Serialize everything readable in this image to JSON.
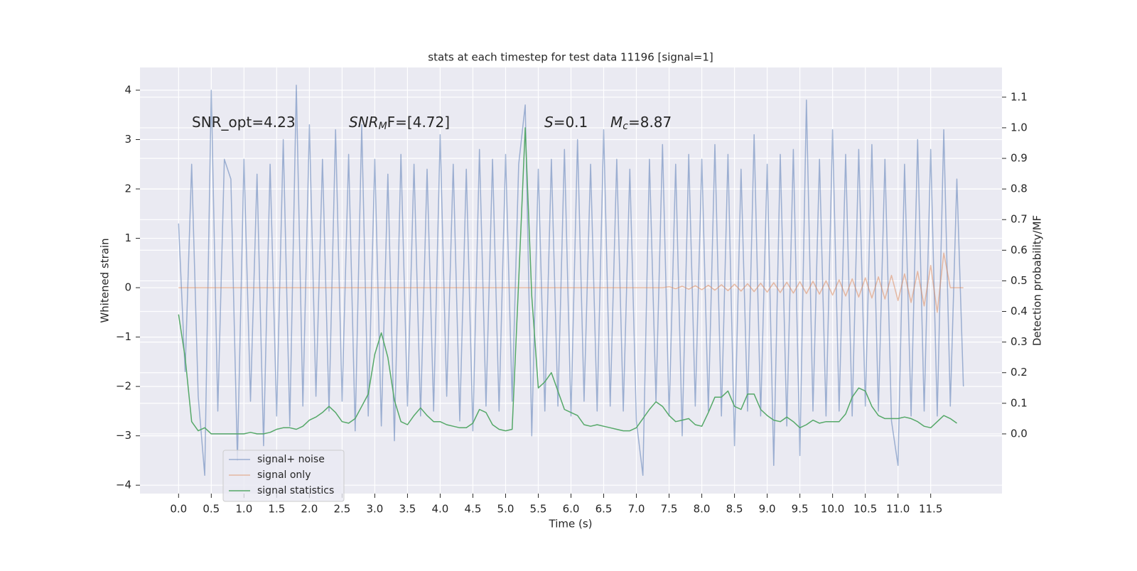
{
  "chart_data": {
    "type": "line",
    "title": "stats at each timestep for test data 11196 [signal=1]",
    "xlabel": "Time (s)",
    "ylabel": "Whitened strain",
    "y2label": "Detection probability/MF",
    "xlim": [
      -0.59,
      12.59
    ],
    "ylim": [
      -4.17,
      4.46
    ],
    "y2lim": [
      -0.195,
      1.197
    ],
    "xticks": [
      {
        "value": 0,
        "label": "0.0"
      },
      0.5,
      {
        "value": 1,
        "label": "1.0"
      },
      1.5,
      {
        "value": 2,
        "label": "2.0"
      },
      2.5,
      {
        "value": 3,
        "label": "3.0"
      },
      3.5,
      {
        "value": 4,
        "label": "4.0"
      },
      4.5,
      {
        "value": 5,
        "label": "5.0"
      },
      5.5,
      {
        "value": 6,
        "label": "6.0"
      },
      6.5,
      {
        "value": 7,
        "label": "7.0"
      },
      7.5,
      {
        "value": 8,
        "label": "8.0"
      },
      8.5,
      {
        "value": 9,
        "label": "9.0"
      },
      9.5,
      {
        "value": 10,
        "label": "10.0"
      },
      10.5,
      {
        "value": 11,
        "label": "11.0"
      },
      11.5
    ],
    "yticks": [
      {
        "value": -4,
        "label": "−4"
      },
      {
        "value": -3,
        "label": "−3"
      },
      {
        "value": -2,
        "label": "−2"
      },
      {
        "value": -1,
        "label": "−1"
      },
      0,
      1,
      2,
      3,
      4
    ],
    "y2ticks": [
      {
        "value": 0,
        "label": "0.0"
      },
      0.1,
      0.2,
      0.3,
      0.4,
      0.5,
      0.6,
      0.7,
      0.8,
      0.9,
      {
        "value": 1,
        "label": "1.0"
      },
      1.1
    ],
    "grid": true,
    "legend": "lower left",
    "annotations": [
      [
        {
          "text": "SNR_opt=4.23"
        }
      ],
      [
        {
          "text": "SNR",
          "italic": true
        },
        {
          "text": "M",
          "italic": true,
          "sub": true
        },
        {
          "text": "F=[4.72]",
          "italic": false
        }
      ],
      [
        {
          "text": "S",
          "italic": true
        },
        {
          "text": "=0.1"
        }
      ],
      [
        {
          "text": "M",
          "italic": true
        },
        {
          "text": "c",
          "italic": true,
          "sub": true
        },
        {
          "text": "=8.87"
        }
      ]
    ],
    "x": [
      0,
      0.1,
      0.2,
      0.3,
      0.4,
      0.5,
      0.6,
      0.7,
      0.8,
      0.9,
      1,
      1.1,
      1.2,
      1.3,
      1.4,
      1.5,
      1.6,
      1.7,
      1.8,
      1.9,
      2,
      2.1,
      2.2,
      2.3,
      2.4,
      2.5,
      2.6,
      2.7,
      2.8,
      2.9,
      3,
      3.1,
      3.2,
      3.3,
      3.4,
      3.5,
      3.6,
      3.7,
      3.8,
      3.9,
      4,
      4.1,
      4.2,
      4.3,
      4.4,
      4.5,
      4.6,
      4.7,
      4.8,
      4.9,
      5,
      5.1,
      5.2,
      5.3,
      5.4,
      5.5,
      5.6,
      5.7,
      5.8,
      5.9,
      6,
      6.1,
      6.2,
      6.3,
      6.4,
      6.5,
      6.6,
      6.7,
      6.8,
      6.9,
      7,
      7.1,
      7.2,
      7.3,
      7.4,
      7.5,
      7.6,
      7.7,
      7.8,
      7.9,
      8,
      8.1,
      8.2,
      8.3,
      8.4,
      8.5,
      8.6,
      8.7,
      8.8,
      8.9,
      9,
      9.1,
      9.2,
      9.3,
      9.4,
      9.5,
      9.6,
      9.7,
      9.8,
      9.9,
      10,
      10.1,
      10.2,
      10.3,
      10.4,
      10.5,
      10.6,
      10.7,
      10.8,
      10.9,
      11,
      11.1,
      11.2,
      11.3,
      11.4,
      11.5,
      11.6,
      11.7,
      11.8,
      11.9,
      12
    ],
    "series": [
      {
        "name": "signal+ noise",
        "color": "#4c72b0",
        "alpha": 0.5,
        "axis": "y",
        "values": [
          1.3,
          -1.7,
          2.5,
          -2.2,
          -3.8,
          4.0,
          -2.5,
          2.6,
          2.2,
          -3.5,
          2.6,
          -2.3,
          2.3,
          -3.2,
          2.5,
          -2.6,
          3.0,
          -2.8,
          4.1,
          -2.4,
          3.3,
          -2.2,
          2.6,
          -2.5,
          3.2,
          -2.3,
          2.7,
          -2.9,
          3.3,
          -2.6,
          2.6,
          -2.8,
          2.3,
          -3.1,
          2.7,
          -2.4,
          2.5,
          -2.6,
          2.4,
          -2.5,
          3.1,
          -2.2,
          2.5,
          -2.7,
          2.4,
          -2.9,
          2.8,
          -2.4,
          2.6,
          -2.5,
          2.7,
          -2.3,
          2.5,
          3.7,
          -3.0,
          2.4,
          -2.5,
          2.6,
          -2.4,
          2.8,
          -2.6,
          3.0,
          -2.3,
          2.5,
          -2.5,
          3.2,
          -2.4,
          2.6,
          -2.5,
          2.4,
          -2.7,
          -3.8,
          2.6,
          -2.3,
          2.9,
          -2.6,
          2.5,
          -3.0,
          2.7,
          -2.4,
          2.6,
          -2.5,
          2.9,
          -2.6,
          2.7,
          -3.2,
          2.4,
          -2.5,
          3.1,
          -2.6,
          2.5,
          -3.6,
          2.7,
          -2.8,
          2.8,
          -3.4,
          3.8,
          -2.5,
          2.6,
          -2.6,
          3.2,
          -2.5,
          2.7,
          -2.6,
          2.8,
          -2.4,
          2.9,
          -2.5,
          2.6,
          -2.7,
          -3.6,
          2.5,
          -2.6,
          3.0,
          -2.5,
          2.8,
          -2.6,
          3.2,
          -2.4,
          2.2,
          -2.0
        ]
      },
      {
        "name": "signal only",
        "color": "#dd8452",
        "alpha": 0.5,
        "axis": "y",
        "values": [
          0,
          0,
          0,
          0,
          0,
          0,
          0,
          0,
          0,
          0,
          0,
          0,
          0,
          0,
          0,
          0,
          0,
          0,
          0,
          0,
          0,
          0,
          0,
          0,
          0,
          0,
          0,
          0,
          0,
          0,
          0,
          0,
          0,
          0,
          0,
          0,
          0,
          0,
          0,
          0,
          0,
          0,
          0,
          0,
          0,
          0,
          0,
          0,
          0,
          0,
          0,
          0,
          0,
          0,
          0,
          0,
          0,
          0,
          0,
          0,
          0,
          0,
          0,
          0,
          0,
          0,
          0,
          0,
          0,
          0,
          0,
          0,
          0,
          0,
          0,
          0.02,
          -0.02,
          0.03,
          -0.03,
          0.04,
          -0.04,
          0.05,
          -0.05,
          0.06,
          -0.06,
          0.07,
          -0.07,
          0.08,
          -0.08,
          0.09,
          -0.09,
          0.1,
          -0.1,
          0.11,
          -0.11,
          0.12,
          -0.12,
          0.13,
          -0.13,
          0.14,
          -0.15,
          0.16,
          -0.17,
          0.18,
          -0.19,
          0.2,
          -0.21,
          0.22,
          -0.23,
          0.25,
          -0.26,
          0.28,
          -0.3,
          0.33,
          -0.37,
          0.45,
          -0.5,
          0.7,
          0,
          0,
          0
        ]
      },
      {
        "name": "signal statistics",
        "color": "#55a868",
        "alpha": 1,
        "axis": "y2",
        "values": [
          0.39,
          0.25,
          0.04,
          0.01,
          0.02,
          0.0,
          0.0,
          0.0,
          0.0,
          0.0,
          0.0,
          0.005,
          0.0,
          0.0,
          0.005,
          0.015,
          0.02,
          0.02,
          0.015,
          0.025,
          0.045,
          0.055,
          0.07,
          0.09,
          0.07,
          0.04,
          0.035,
          0.05,
          0.09,
          0.13,
          0.26,
          0.33,
          0.25,
          0.11,
          0.04,
          0.03,
          0.06,
          0.085,
          0.06,
          0.04,
          0.04,
          0.03,
          0.025,
          0.02,
          0.02,
          0.035,
          0.08,
          0.07,
          0.03,
          0.015,
          0.01,
          0.015,
          0.5,
          1.0,
          0.45,
          0.15,
          0.17,
          0.2,
          0.14,
          0.08,
          0.07,
          0.06,
          0.03,
          0.025,
          0.03,
          0.025,
          0.02,
          0.015,
          0.01,
          0.01,
          0.02,
          0.05,
          0.08,
          0.105,
          0.09,
          0.06,
          0.04,
          0.045,
          0.05,
          0.03,
          0.025,
          0.07,
          0.12,
          0.12,
          0.14,
          0.09,
          0.08,
          0.13,
          0.13,
          0.08,
          0.06,
          0.045,
          0.04,
          0.055,
          0.04,
          0.02,
          0.03,
          0.045,
          0.035,
          0.04,
          0.04,
          0.04,
          0.065,
          0.12,
          0.15,
          0.14,
          0.09,
          0.06,
          0.05,
          0.05,
          0.05,
          0.055,
          0.05,
          0.04,
          0.025,
          0.02,
          0.04,
          0.06,
          0.05,
          0.035,
          null
        ]
      }
    ]
  }
}
